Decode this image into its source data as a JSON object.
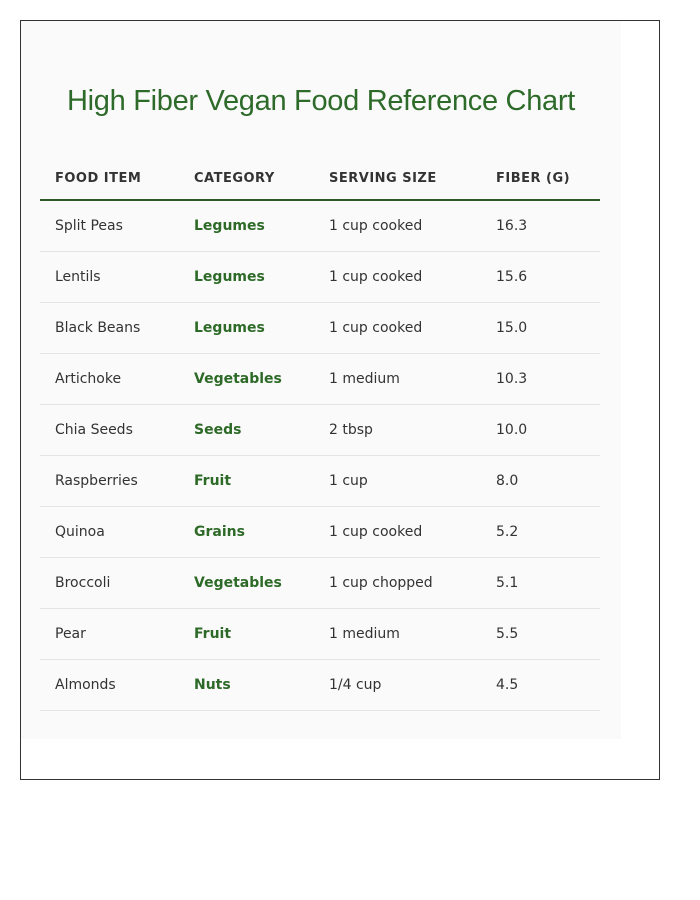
{
  "header": {
    "title": "High Fiber Vegan Food Reference Chart"
  },
  "table": {
    "columns": [
      "FOOD ITEM",
      "CATEGORY",
      "SERVING SIZE",
      "FIBER (G)"
    ],
    "rows": [
      [
        "Split Peas",
        "Legumes",
        "1 cup cooked",
        "16.3"
      ],
      [
        "Lentils",
        "Legumes",
        "1 cup cooked",
        "15.6"
      ],
      [
        "Black Beans",
        "Legumes",
        "1 cup cooked",
        "15.0"
      ],
      [
        "Artichoke",
        "Vegetables",
        "1 medium",
        "10.3"
      ],
      [
        "Chia Seeds",
        "Seeds",
        "2 tbsp",
        "10.0"
      ],
      [
        "Raspberries",
        "Fruit",
        "1 cup",
        "8.0"
      ],
      [
        "Quinoa",
        "Grains",
        "1 cup cooked",
        "5.2"
      ],
      [
        "Broccoli",
        "Vegetables",
        "1 cup chopped",
        "5.1"
      ],
      [
        "Pear",
        "Fruit",
        "1 medium",
        "5.5"
      ],
      [
        "Almonds",
        "Nuts",
        "1/4 cup",
        "4.5"
      ]
    ]
  }
}
